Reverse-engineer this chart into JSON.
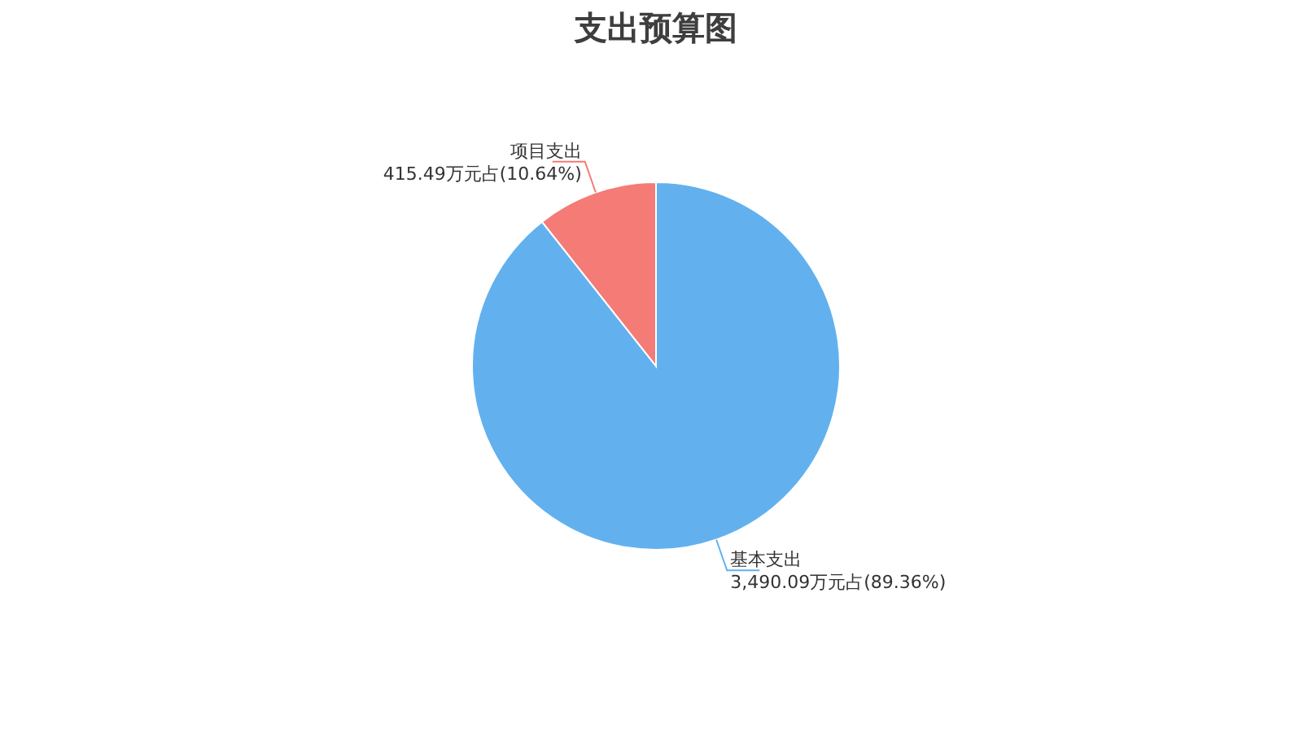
{
  "chart_data": {
    "type": "pie",
    "title": "支出预算图",
    "categories": [
      "基本支出",
      "项目支出"
    ],
    "values": [
      3490.09,
      415.49
    ],
    "value_labels": [
      "3,490.09万元占(89.36%)",
      "415.49万元占(10.64%)"
    ],
    "colors": [
      "#62b1ee",
      "#f47b76"
    ]
  }
}
